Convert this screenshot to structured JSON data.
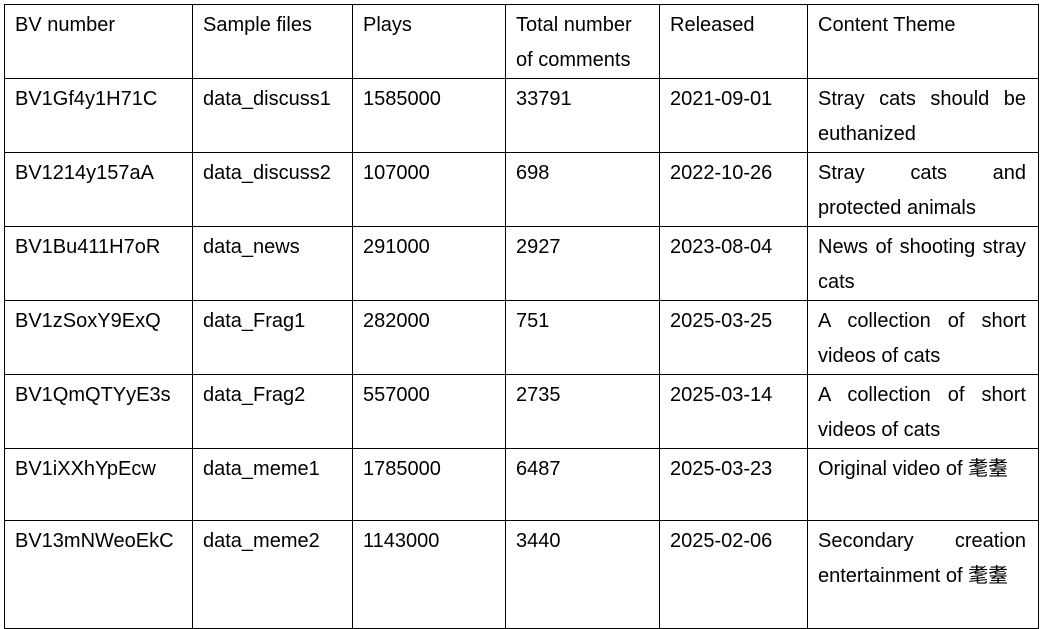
{
  "headers": [
    "BV number",
    "Sample files",
    "Plays",
    "Total number of comments",
    "Released",
    "Content Theme"
  ],
  "rows": [
    [
      "BV1Gf4y1H71C",
      "data_discuss1",
      "1585000",
      "33791",
      "2021-09-01",
      "Stray cats should be euthanized"
    ],
    [
      "BV1214y157aA",
      "data_discuss2",
      "107000",
      "698",
      "2022-10-26",
      "Stray cats and protected animals"
    ],
    [
      "BV1Bu411H7oR",
      "data_news",
      "291000",
      "2927",
      "2023-08-04",
      "News of shooting stray cats"
    ],
    [
      "BV1zSoxY9ExQ",
      "data_Frag1",
      "282000",
      "751",
      "2025-03-25",
      "A collection of short videos of cats"
    ],
    [
      "BV1QmQTYyE3s",
      "data_Frag2",
      "557000",
      "2735",
      "2025-03-14",
      "A collection of short videos of cats"
    ],
    [
      "BV1iXXhYpEcw",
      "data_meme1",
      "1785000",
      "6487",
      "2025-03-23",
      "Original video of 耄耋"
    ],
    [
      "BV13mNWeoEkC",
      "data_meme2",
      "1143000",
      "3440",
      "2025-02-06",
      "Secondary creation entertainment of 耄耋"
    ]
  ]
}
